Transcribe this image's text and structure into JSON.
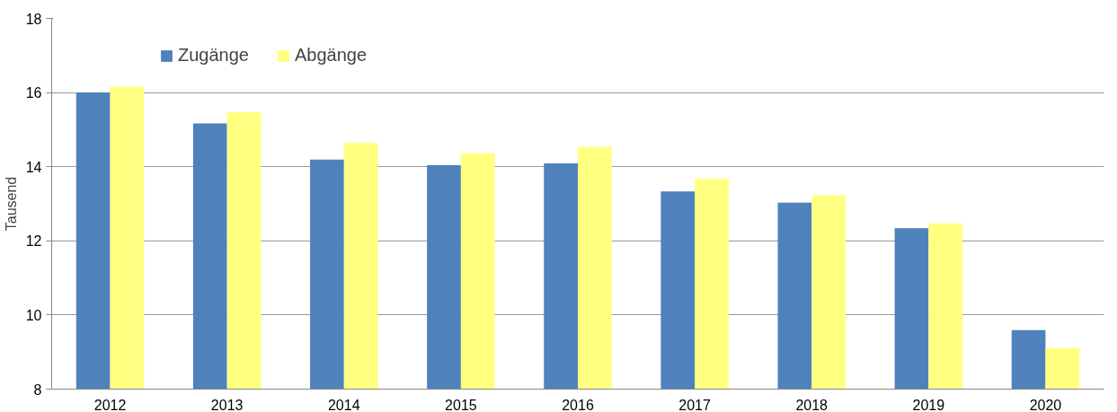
{
  "chart_data": {
    "type": "bar",
    "ylabel": "Tausend",
    "categories": [
      "2012",
      "2013",
      "2014",
      "2015",
      "2016",
      "2017",
      "2018",
      "2019",
      "2020"
    ],
    "series": [
      {
        "name": "Zugänge",
        "color": "#4f81bd",
        "values": [
          16.0,
          15.17,
          14.19,
          14.04,
          14.09,
          13.33,
          13.03,
          12.34,
          9.59
        ]
      },
      {
        "name": "Abgänge",
        "color": "#ffff80",
        "values": [
          16.16,
          15.47,
          14.64,
          14.36,
          14.54,
          13.68,
          13.23,
          12.47,
          9.11
        ]
      }
    ],
    "ylim": [
      8,
      18
    ],
    "yticks": [
      8,
      10,
      12,
      14,
      16,
      18
    ],
    "grid": "y",
    "legend": "top left"
  }
}
